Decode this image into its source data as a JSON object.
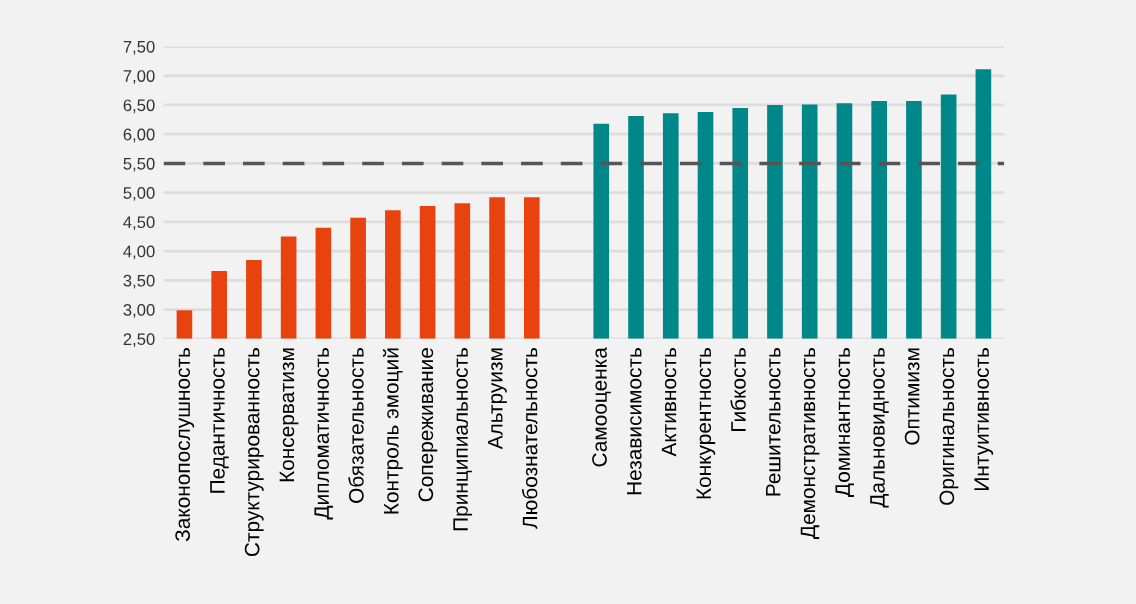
{
  "chart_data": {
    "type": "bar",
    "categories": [
      "Законопослушность",
      "Педантичность",
      "Структурированность",
      "Консерватизм",
      "Дипломатичность",
      "Обязательность",
      "Контроль эмоций",
      "Сопереживание",
      "Принципиальность",
      "Альтруизм",
      "Любознательность",
      null,
      "Самооценка",
      "Независимость",
      "Активность",
      "Конкурентность",
      "Гибкость",
      "Решительность",
      "Демонстративность",
      "Доминантность",
      "Дальновидность",
      "Оптимизм",
      "Оригинальность",
      "Интуитивность"
    ],
    "values": [
      2.99,
      3.66,
      3.85,
      4.25,
      4.4,
      4.57,
      4.7,
      4.77,
      4.82,
      4.92,
      4.92,
      null,
      6.18,
      6.31,
      6.36,
      6.38,
      6.45,
      6.5,
      6.51,
      6.53,
      6.57,
      6.57,
      6.68,
      7.11
    ],
    "colors": [
      "#e8430e",
      "#e8430e",
      "#e8430e",
      "#e8430e",
      "#e8430e",
      "#e8430e",
      "#e8430e",
      "#e8430e",
      "#e8430e",
      "#e8430e",
      "#e8430e",
      null,
      "#00878a",
      "#00878a",
      "#00878a",
      "#00878a",
      "#00878a",
      "#00878a",
      "#00878a",
      "#00878a",
      "#00878a",
      "#00878a",
      "#00878a",
      "#00878a"
    ],
    "ylim": [
      2.5,
      7.5
    ],
    "yticks": [
      {
        "value": 2.5,
        "label": "2,50"
      },
      {
        "value": 3.0,
        "label": "3,00"
      },
      {
        "value": 3.5,
        "label": "3,50"
      },
      {
        "value": 4.0,
        "label": "4,00"
      },
      {
        "value": 4.5,
        "label": "4,50"
      },
      {
        "value": 5.0,
        "label": "5,00"
      },
      {
        "value": 5.5,
        "label": "5,50"
      },
      {
        "value": 6.0,
        "label": "6,00"
      },
      {
        "value": 6.5,
        "label": "6,50"
      },
      {
        "value": 7.0,
        "label": "7,00"
      },
      {
        "value": 7.5,
        "label": "7,50"
      }
    ],
    "grid": "y",
    "ref_lines": [
      {
        "axis": "y",
        "value": 5.5,
        "color": "#555555",
        "line_style": "dashed"
      }
    ]
  }
}
